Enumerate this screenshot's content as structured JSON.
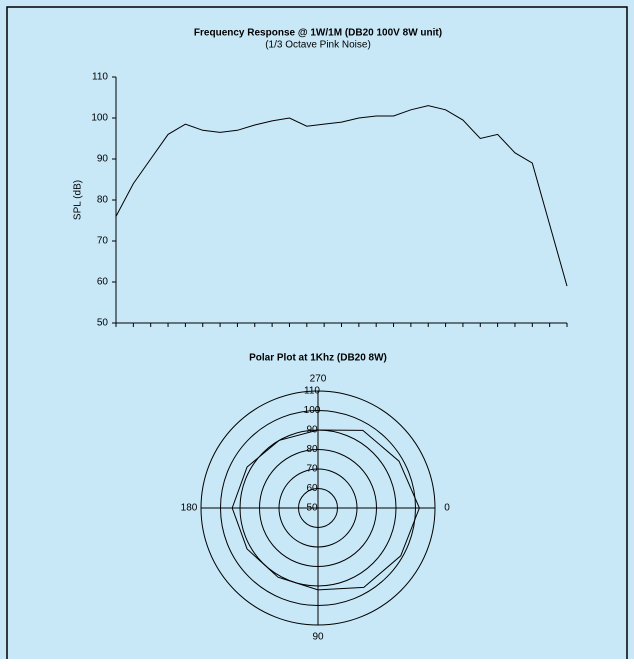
{
  "chart_data": [
    {
      "type": "line",
      "title": "Frequency Response @ 1W/1M (DB20 100V 8W unit)",
      "subtitle": "(1/3 Octave Pink Noise)",
      "y_label": "SPL (dB)",
      "categories": [
        null,
        null,
        null,
        null,
        null,
        null,
        null,
        null,
        null,
        null,
        null,
        null,
        null,
        null,
        null,
        null,
        null,
        null,
        null,
        null,
        null,
        null,
        null,
        null,
        null,
        null,
        null
      ],
      "values": [
        76,
        84,
        90,
        96,
        98.5,
        97,
        96.5,
        97,
        98.3,
        99.3,
        100,
        98,
        98.5,
        99,
        100,
        100.5,
        100.5,
        102,
        103,
        102,
        99.5,
        95,
        96,
        91.5,
        89,
        74,
        59
      ],
      "color": "#000000",
      "ylim": [
        50,
        110
      ],
      "yticks": [
        50,
        60,
        70,
        80,
        90,
        100,
        110
      ]
    },
    {
      "type": "polar",
      "title": "Polar Plot at 1Khz (DB20 8W)",
      "theta": [
        0,
        30,
        60,
        90,
        120,
        150,
        180,
        210,
        240,
        270,
        300,
        330
      ],
      "values": [
        102,
        99,
        97,
        92,
        91,
        92,
        94,
        92,
        90,
        90,
        96,
        98
      ],
      "color": "#000000",
      "rlim": [
        50,
        110
      ],
      "rticks": [
        50,
        60,
        70,
        80,
        90,
        100,
        110
      ],
      "thetaticks": [
        0,
        90,
        180,
        270
      ]
    }
  ]
}
